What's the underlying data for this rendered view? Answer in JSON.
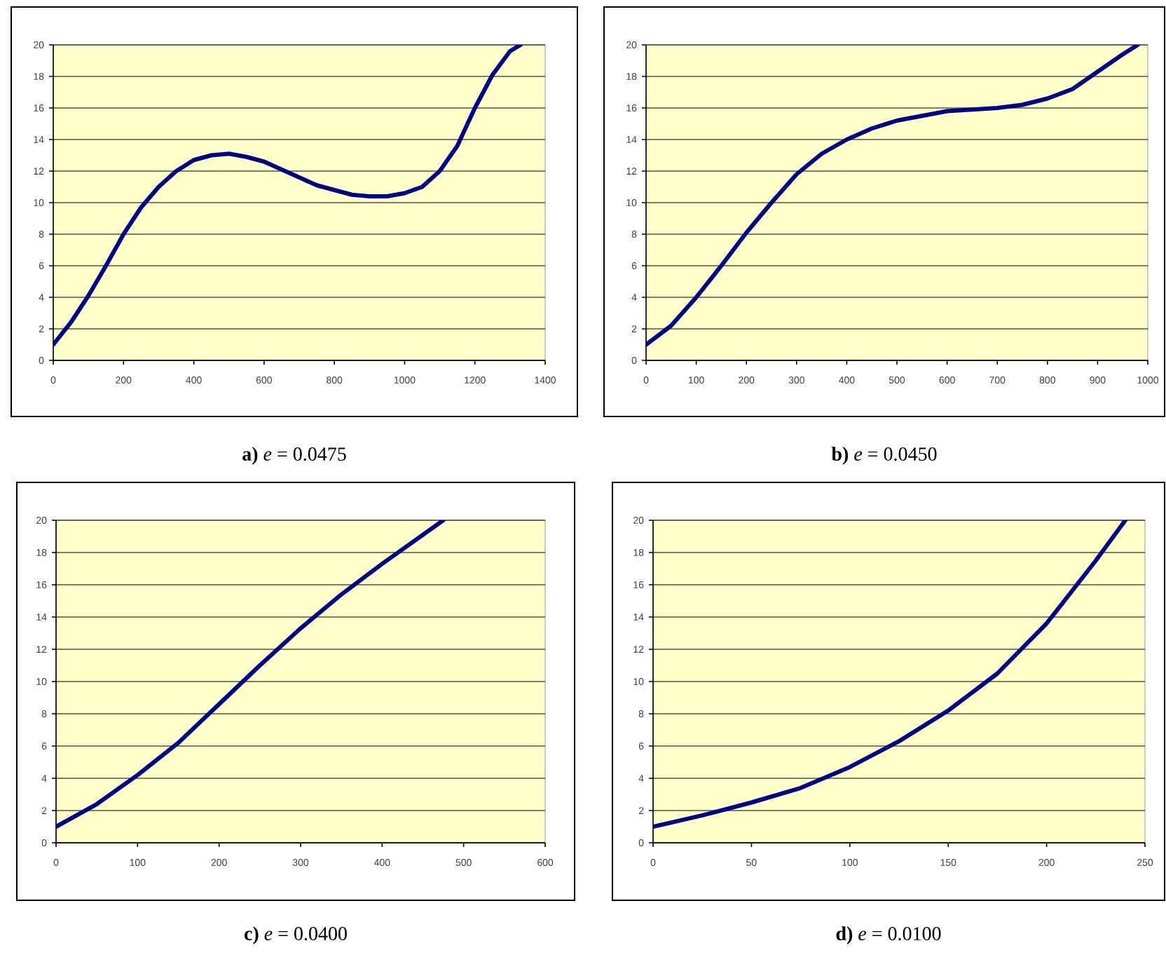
{
  "chart_data": [
    {
      "type": "line",
      "title": "**a)** *e* = 0.0475",
      "color": "#000080",
      "grid": "y",
      "x": [
        0,
        50,
        100,
        150,
        200,
        250,
        300,
        350,
        400,
        450,
        500,
        550,
        600,
        650,
        700,
        750,
        800,
        850,
        900,
        950,
        1000,
        1050,
        1100,
        1150,
        1200,
        1250,
        1300,
        1330
      ],
      "values": [
        1,
        2.4,
        4.1,
        6,
        8,
        9.7,
        11,
        12,
        12.7,
        13,
        13.1,
        12.9,
        12.6,
        12.1,
        11.6,
        11.1,
        10.8,
        10.5,
        10.4,
        10.4,
        10.6,
        11,
        12,
        13.6,
        16,
        18.1,
        19.6,
        20
      ],
      "xlim": [
        0,
        1400
      ],
      "ylim": [
        0,
        20
      ],
      "xticks": [
        0,
        200,
        400,
        600,
        800,
        1000,
        1200,
        1400
      ],
      "yticks": [
        0,
        2,
        4,
        6,
        8,
        10,
        12,
        14,
        16,
        18,
        20
      ]
    },
    {
      "type": "line",
      "title": "**b)** *e* = 0.0450",
      "color": "#000080",
      "grid": "y",
      "x": [
        0,
        50,
        100,
        150,
        200,
        250,
        300,
        350,
        400,
        450,
        500,
        550,
        600,
        650,
        700,
        750,
        800,
        850,
        900,
        950,
        980
      ],
      "values": [
        1,
        2.2,
        4,
        6,
        8.1,
        10,
        11.8,
        13.1,
        14,
        14.7,
        15.2,
        15.5,
        15.8,
        15.9,
        16,
        16.2,
        16.6,
        17.2,
        18.3,
        19.4,
        20
      ],
      "xlim": [
        0,
        1000
      ],
      "ylim": [
        0,
        20
      ],
      "xticks": [
        0,
        100,
        200,
        300,
        400,
        500,
        600,
        700,
        800,
        900,
        1000
      ],
      "yticks": [
        0,
        2,
        4,
        6,
        8,
        10,
        12,
        14,
        16,
        18,
        20
      ]
    },
    {
      "type": "line",
      "title": "**c)** *e* = 0.0400",
      "color": "#000080",
      "grid": "y",
      "x": [
        0,
        50,
        100,
        150,
        200,
        250,
        300,
        350,
        400,
        450,
        475
      ],
      "values": [
        1,
        2.4,
        4.2,
        6.2,
        8.6,
        11,
        13.3,
        15.4,
        17.3,
        19.1,
        20
      ],
      "xlim": [
        0,
        600
      ],
      "ylim": [
        0,
        20
      ],
      "xticks": [
        0,
        100,
        200,
        300,
        400,
        500,
        600
      ],
      "yticks": [
        0,
        2,
        4,
        6,
        8,
        10,
        12,
        14,
        16,
        18,
        20
      ]
    },
    {
      "type": "line",
      "title": "**d)** *e* = 0.0100",
      "color": "#000080",
      "grid": "y",
      "x": [
        0,
        25,
        50,
        75,
        100,
        125,
        150,
        175,
        200,
        225,
        240
      ],
      "values": [
        1,
        1.7,
        2.5,
        3.4,
        4.7,
        6.3,
        8.2,
        10.5,
        13.6,
        17.5,
        20
      ],
      "xlim": [
        0,
        250
      ],
      "ylim": [
        0,
        20
      ],
      "xticks": [
        0,
        50,
        100,
        150,
        200,
        250
      ],
      "yticks": [
        0,
        2,
        4,
        6,
        8,
        10,
        12,
        14,
        16,
        18,
        20
      ]
    }
  ]
}
